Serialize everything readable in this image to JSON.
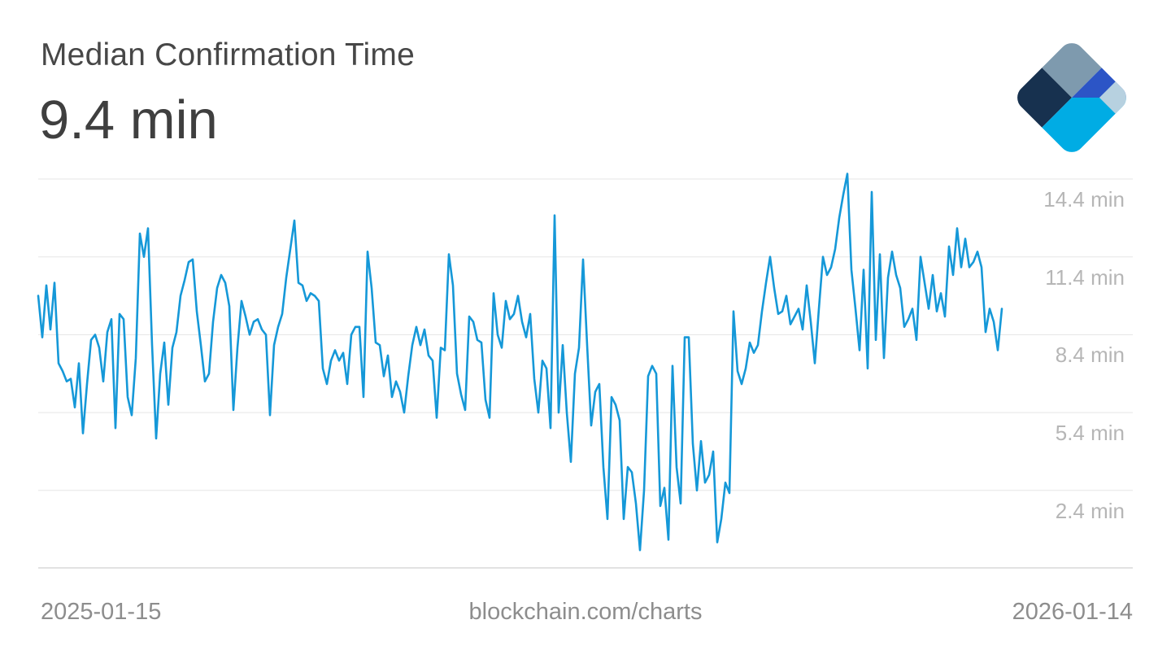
{
  "header": {
    "title": "Median Confirmation Time",
    "current_value": "9.4 min"
  },
  "footer": {
    "start_date": "2025-01-15",
    "attribution": "blockchain.com/charts",
    "end_date": "2026-01-14"
  },
  "logo": {
    "name": "blockchain-com-logo",
    "colors": {
      "slate": "#7E9AAE",
      "navy": "#17314F",
      "royal": "#2C55C6",
      "cyan": "#00ACE4",
      "light": "#B7D1E0"
    }
  },
  "chart_data": {
    "type": "line",
    "title": "Median Confirmation Time",
    "unit": "min",
    "latest_value": 9.4,
    "x_start": "2025-01-15",
    "x_end": "2026-01-14",
    "xlabel": "",
    "ylabel": "",
    "ylim": [
      0,
      15.1
    ],
    "grid": "horizontal-only",
    "legend": "none",
    "line_color": "#1598d8",
    "y_ticks": [
      {
        "value": 14.4,
        "label": "14.4 min"
      },
      {
        "value": 11.4,
        "label": "11.4 min"
      },
      {
        "value": 8.4,
        "label": "8.4 min"
      },
      {
        "value": 5.4,
        "label": "5.4 min"
      },
      {
        "value": 2.4,
        "label": "2.4 min"
      }
    ],
    "values": [
      9.9,
      8.3,
      10.3,
      8.6,
      10.4,
      7.3,
      7.0,
      6.6,
      6.7,
      5.6,
      7.3,
      4.6,
      6.5,
      8.2,
      8.4,
      7.9,
      6.6,
      8.5,
      9.0,
      4.8,
      9.2,
      9.0,
      6.0,
      5.3,
      7.5,
      12.3,
      11.4,
      12.5,
      8.0,
      4.4,
      6.9,
      8.1,
      5.7,
      7.9,
      8.5,
      9.9,
      10.5,
      11.2,
      11.3,
      9.3,
      8.0,
      6.6,
      6.9,
      8.9,
      10.2,
      10.7,
      10.4,
      9.5,
      5.5,
      7.9,
      9.7,
      9.1,
      8.4,
      8.9,
      9.0,
      8.6,
      8.4,
      5.3,
      8.0,
      8.7,
      9.2,
      10.6,
      11.7,
      12.8,
      10.4,
      10.3,
      9.7,
      10.0,
      9.9,
      9.7,
      7.1,
      6.5,
      7.4,
      7.8,
      7.4,
      7.7,
      6.5,
      8.4,
      8.7,
      8.7,
      6.0,
      11.6,
      10.2,
      8.1,
      8.0,
      6.8,
      7.6,
      6.0,
      6.6,
      6.2,
      5.4,
      6.8,
      8.0,
      8.7,
      8.0,
      8.6,
      7.6,
      7.4,
      5.2,
      7.9,
      7.8,
      11.5,
      10.3,
      6.9,
      6.1,
      5.5,
      9.1,
      8.9,
      8.2,
      8.1,
      5.9,
      5.2,
      10.0,
      8.4,
      7.9,
      9.7,
      9.0,
      9.2,
      9.9,
      8.9,
      8.3,
      9.2,
      6.7,
      5.4,
      7.4,
      7.1,
      4.8,
      13.0,
      5.4,
      8.0,
      5.4,
      3.5,
      6.9,
      7.9,
      11.3,
      8.0,
      4.9,
      6.2,
      6.5,
      3.3,
      1.3,
      6.0,
      5.7,
      5.1,
      1.3,
      3.3,
      3.1,
      1.9,
      0.1,
      2.4,
      6.8,
      7.2,
      6.9,
      1.8,
      2.5,
      0.5,
      7.2,
      3.3,
      1.9,
      8.3,
      8.3,
      4.2,
      2.4,
      4.3,
      2.7,
      3.0,
      3.9,
      0.4,
      1.3,
      2.7,
      2.3,
      9.3,
      7.0,
      6.5,
      7.1,
      8.1,
      7.7,
      8.0,
      9.3,
      10.4,
      11.4,
      10.2,
      9.2,
      9.3,
      9.9,
      8.8,
      9.1,
      9.4,
      8.6,
      10.3,
      8.9,
      7.3,
      9.4,
      11.4,
      10.7,
      11.0,
      11.7,
      12.9,
      13.8,
      14.6,
      10.9,
      9.4,
      7.8,
      10.9,
      7.1,
      13.9,
      8.2,
      11.5,
      7.5,
      10.6,
      11.6,
      10.7,
      10.2,
      8.7,
      9.0,
      9.4,
      8.2,
      11.4,
      10.4,
      9.4,
      10.7,
      9.3,
      10.0,
      9.1,
      11.8,
      10.7,
      12.5,
      11.0,
      12.1,
      11.0,
      11.2,
      11.6,
      11.0,
      8.5,
      9.4,
      8.9,
      7.8,
      9.4
    ]
  }
}
